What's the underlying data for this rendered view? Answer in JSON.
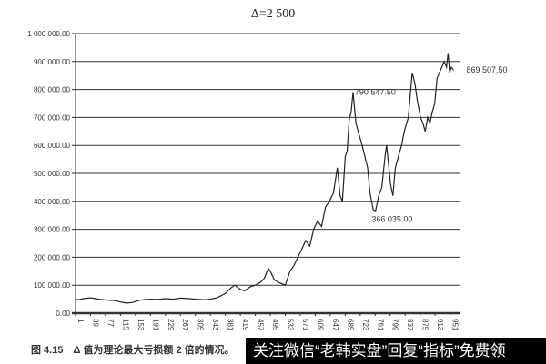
{
  "chart_data": {
    "type": "line",
    "title": "Δ=2 500",
    "xlabel": "",
    "ylabel": "",
    "ylim": [
      0,
      1000000
    ],
    "yticks": [
      "0.00",
      "100 000.00",
      "200 000.00",
      "300 000.00",
      "400 000.00",
      "500 000.00",
      "600 000.00",
      "700 000.00",
      "800 000.00",
      "900 000.00",
      "1 000 000.00"
    ],
    "xticks": [
      "1",
      "39",
      "77",
      "115",
      "153",
      "191",
      "229",
      "267",
      "305",
      "343",
      "381",
      "419",
      "457",
      "495",
      "533",
      "571",
      "609",
      "647",
      "685",
      "723",
      "761",
      "799",
      "837",
      "875",
      "913",
      "951"
    ],
    "grid": true,
    "legend": "none",
    "line_color": "#222222",
    "annotations": [
      {
        "text": "790 547.50",
        "x": 700,
        "y": 790547.5
      },
      {
        "text": "366 035.00",
        "x": 752,
        "y": 366035
      },
      {
        "text": "869 507.50",
        "x": 960,
        "y": 869507.5
      }
    ],
    "series": [
      {
        "x": [
          1,
          10,
          20,
          39,
          60,
          77,
          100,
          115,
          130,
          145,
          153,
          170,
          191,
          210,
          229,
          250,
          267,
          290,
          305,
          330,
          343,
          360,
          381,
          395,
          405,
          419,
          430,
          445,
          457,
          470,
          480,
          490,
          495,
          505,
          515,
          525,
          533,
          545,
          555,
          565,
          575,
          585,
          595,
          605,
          615,
          625,
          635,
          645,
          655,
          665,
          668,
          672,
          678,
          685,
          690,
          695,
          700,
          705,
          712,
          720,
          728,
          735,
          742,
          748,
          752,
          756,
          762,
          770,
          778,
          786,
          790,
          796,
          800,
          806,
          812,
          820,
          828,
          835,
          845,
          855,
          862,
          868,
          872,
          876,
          882,
          888,
          894,
          900,
          906,
          912,
          918,
          924,
          930,
          936,
          942,
          946,
          950,
          954,
          960
        ],
        "y": [
          50000,
          48000,
          52000,
          55000,
          50000,
          47000,
          45000,
          40000,
          36000,
          38000,
          42000,
          48000,
          50000,
          49000,
          52000,
          50000,
          54000,
          52000,
          50000,
          48000,
          50000,
          55000,
          70000,
          90000,
          100000,
          85000,
          80000,
          95000,
          100000,
          110000,
          125000,
          160000,
          150000,
          120000,
          110000,
          105000,
          100000,
          150000,
          170000,
          200000,
          230000,
          260000,
          240000,
          300000,
          330000,
          310000,
          380000,
          400000,
          430000,
          520000,
          480000,
          420000,
          400000,
          560000,
          580000,
          690000,
          720000,
          790547.5,
          680000,
          640000,
          600000,
          560000,
          520000,
          430000,
          400000,
          370000,
          366035,
          420000,
          450000,
          560000,
          600000,
          520000,
          460000,
          420000,
          520000,
          560000,
          600000,
          650000,
          700000,
          860000,
          820000,
          760000,
          730000,
          700000,
          680000,
          650000,
          700000,
          680000,
          720000,
          750000,
          840000,
          860000,
          880000,
          900000,
          880000,
          930000,
          860000,
          880000,
          869507.5
        ]
      }
    ]
  },
  "caption": "图 4.15　Δ 值为理论最大亏损额 2 倍的情况。",
  "banner": "关注微信“老韩实盘”回复“指标”免费领"
}
